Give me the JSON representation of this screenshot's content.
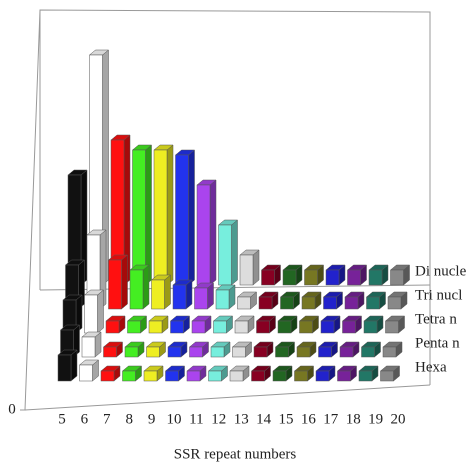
{
  "chart_data": {
    "type": "bar3d",
    "x_label": "SSR repeat numbers",
    "categories": [
      "5",
      "6",
      "7",
      "8",
      "9",
      "10",
      "11",
      "12",
      "13",
      "14",
      "15",
      "16",
      "17",
      "18",
      "19",
      "20"
    ],
    "colors": [
      "#111111",
      "#ffffff",
      "#ff1010",
      "#44ee22",
      "#eeee22",
      "#2233ee",
      "#aa44ee",
      "#77eedd",
      "#dddddd",
      "#880022",
      "#226622",
      "#777722",
      "#2222cc",
      "#772299",
      "#227766",
      "#888888"
    ],
    "series": [
      {
        "name": "Di nucle",
        "values": [
          110,
          230,
          145,
          135,
          135,
          130,
          100,
          60,
          30,
          15,
          15,
          15,
          15,
          15,
          15,
          15
        ]
      },
      {
        "name": "Tri nucl",
        "values": [
          44,
          74,
          49,
          39,
          29,
          24,
          21,
          19,
          12,
          12,
          12,
          12,
          12,
          12,
          12,
          12
        ]
      },
      {
        "name": "Tetra n",
        "values": [
          33,
          38,
          12,
          12,
          12,
          12,
          12,
          12,
          12,
          12,
          12,
          12,
          12,
          12,
          12,
          12
        ]
      },
      {
        "name": "Penta n",
        "values": [
          27,
          20,
          10,
          10,
          10,
          10,
          10,
          10,
          10,
          10,
          10,
          10,
          10,
          10,
          10,
          10
        ]
      },
      {
        "name": "Hexa",
        "values": [
          26,
          16,
          10,
          10,
          10,
          10,
          10,
          10,
          10,
          10,
          10,
          10,
          10,
          10,
          10,
          10
        ]
      }
    ],
    "ylim": [
      0,
      300
    ],
    "yticks": [
      0
    ]
  }
}
